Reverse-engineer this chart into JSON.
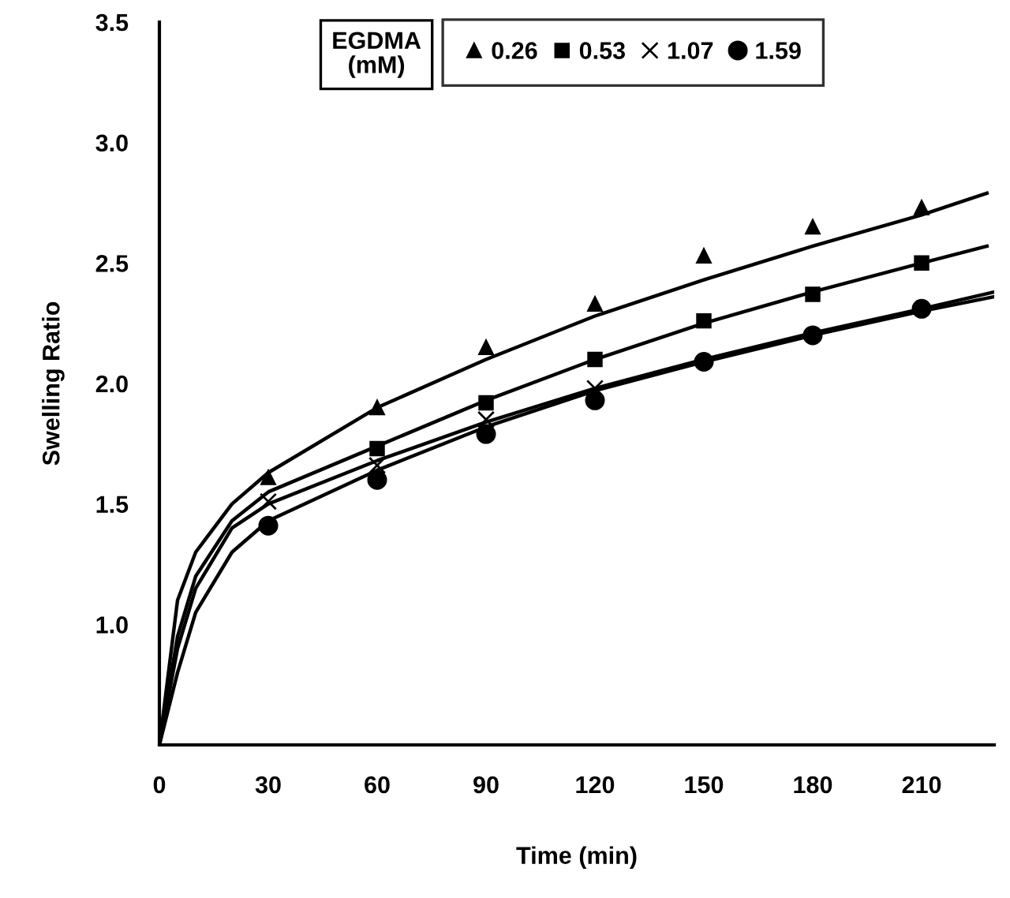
{
  "chart_data": {
    "type": "scatter",
    "xlabel": "Time (min)",
    "ylabel": "Swelling Ratio",
    "legend_title": "EGDMA\n(mM)",
    "legend": "top",
    "grid": false,
    "x": [
      30,
      60,
      90,
      120,
      150,
      180,
      210
    ],
    "xlim": [
      0,
      230
    ],
    "xticks": [
      0,
      30,
      60,
      90,
      120,
      150,
      180,
      210
    ],
    "ylim": [
      0.5,
      3.5
    ],
    "yticks": [
      {
        "value": 1.0,
        "label": "1.0"
      },
      {
        "value": 1.5,
        "label": "1.5"
      },
      {
        "value": 2.0,
        "label": "2.0"
      },
      {
        "value": 2.5,
        "label": "2.5"
      },
      {
        "value": 3.0,
        "label": "3.0"
      },
      {
        "value": 3.5,
        "label": "3.5"
      }
    ],
    "series": [
      {
        "name": "0.26",
        "color": "#000000",
        "marker": "triangle",
        "values": [
          1.61,
          1.9,
          2.15,
          2.33,
          2.53,
          2.65,
          2.73
        ]
      },
      {
        "name": "0.53",
        "color": "#000000",
        "marker": "square",
        "values": [
          null,
          1.73,
          1.92,
          2.1,
          2.26,
          2.37,
          2.5
        ]
      },
      {
        "name": "1.07",
        "color": "#000000",
        "marker": "cross",
        "values": [
          1.51,
          1.66,
          1.85,
          1.98,
          null,
          null,
          null
        ]
      },
      {
        "name": "1.59",
        "color": "#000000",
        "marker": "circle",
        "values": [
          1.41,
          1.6,
          1.79,
          1.93,
          2.09,
          2.2,
          2.31
        ]
      },
      {
        "type": "line",
        "color": "#000000",
        "marker": "none",
        "line_style": "solid",
        "x": [
          0,
          5,
          10,
          20,
          30,
          60,
          90,
          120,
          150,
          180,
          210,
          228
        ],
        "values": [
          0.5,
          1.1,
          1.3,
          1.5,
          1.63,
          1.9,
          2.1,
          2.28,
          2.43,
          2.57,
          2.7,
          2.79
        ]
      },
      {
        "type": "line",
        "color": "#000000",
        "marker": "none",
        "line_style": "solid",
        "x": [
          0,
          5,
          10,
          20,
          30,
          60,
          90,
          120,
          150,
          180,
          210,
          228
        ],
        "values": [
          0.5,
          0.95,
          1.2,
          1.43,
          1.55,
          1.74,
          1.93,
          2.1,
          2.25,
          2.38,
          2.5,
          2.57
        ]
      },
      {
        "type": "line",
        "color": "#000000",
        "marker": "none",
        "line_style": "solid",
        "x": [
          0,
          5,
          10,
          20,
          30,
          60,
          90,
          120,
          150,
          180,
          210,
          230
        ],
        "values": [
          0.5,
          0.9,
          1.15,
          1.4,
          1.5,
          1.68,
          1.84,
          1.98,
          2.1,
          2.21,
          2.31,
          2.38
        ]
      },
      {
        "type": "line",
        "color": "#000000",
        "marker": "none",
        "line_style": "solid",
        "x": [
          0,
          5,
          10,
          20,
          30,
          60,
          90,
          120,
          150,
          180,
          210,
          230
        ],
        "values": [
          0.5,
          0.8,
          1.05,
          1.3,
          1.43,
          1.64,
          1.82,
          1.97,
          2.09,
          2.2,
          2.3,
          2.36
        ]
      }
    ]
  }
}
